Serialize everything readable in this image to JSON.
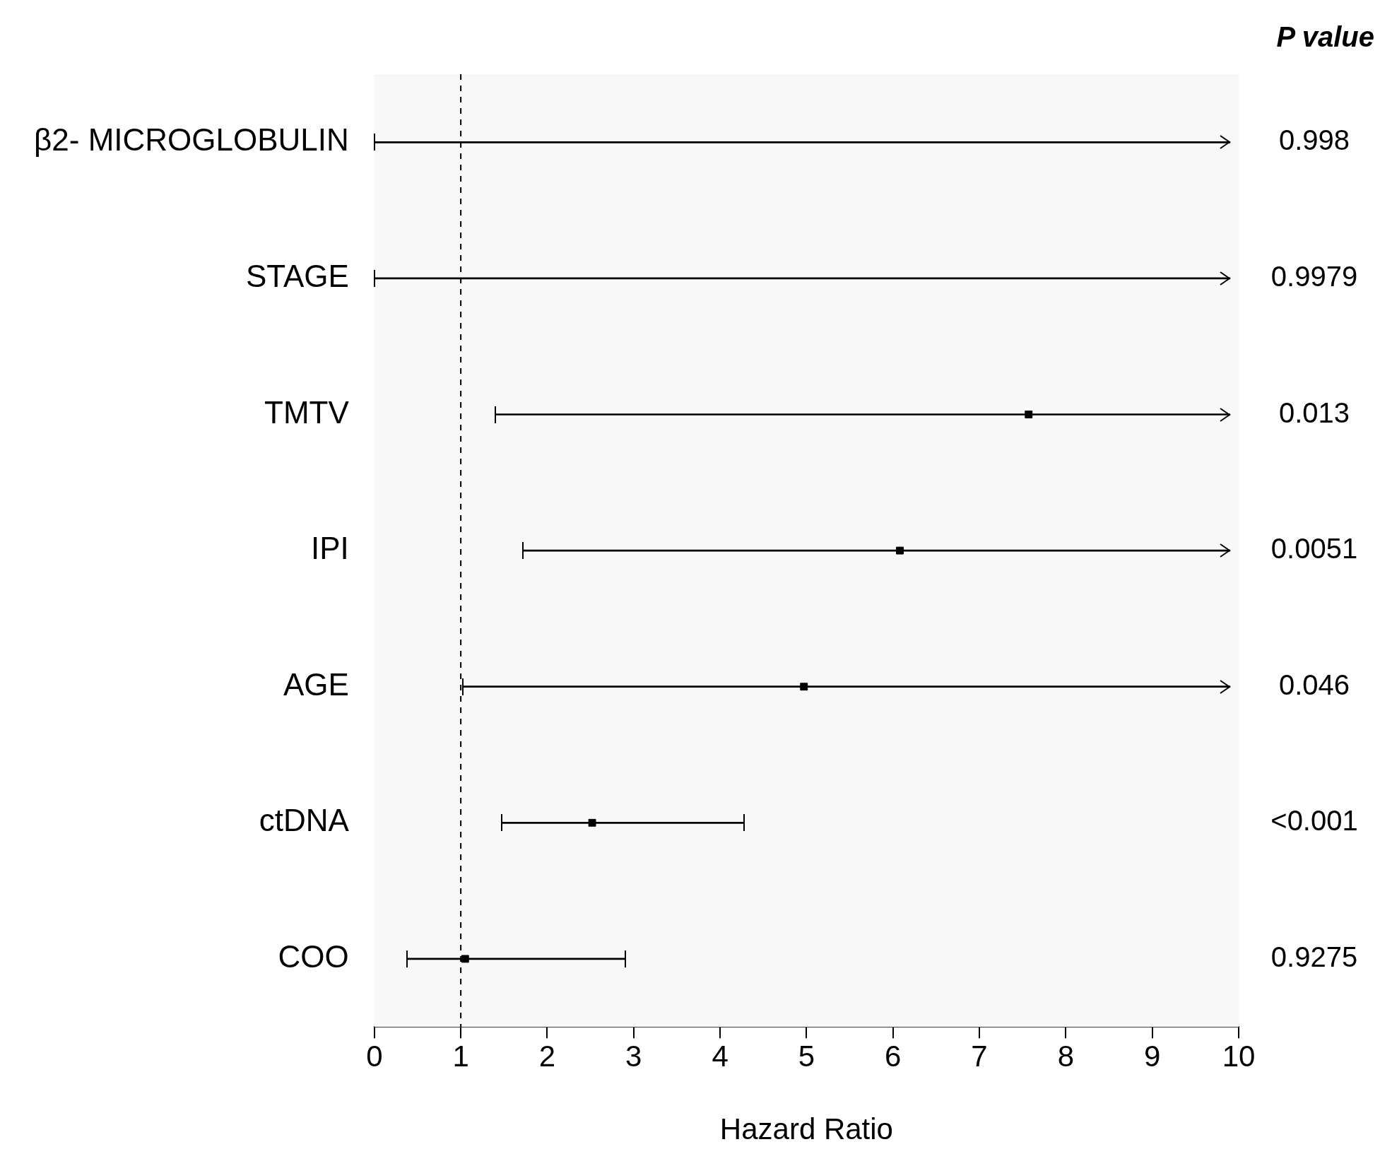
{
  "chart_data": {
    "type": "bar",
    "orientation": "horizontal",
    "xlabel": "Hazard Ratio",
    "categories": [
      "β2- MICROGLOBULIN",
      "STAGE",
      "TMTV",
      "IPI",
      "AGE",
      "ctDNA",
      "COO"
    ],
    "series": [
      {
        "type": "bar",
        "color": "#000000",
        "base": [
          0,
          0,
          1.4,
          1.72,
          1.02,
          1.47,
          0.38
        ],
        "values": [
          9.9,
          9.9,
          8.5,
          8.18,
          8.88,
          2.81,
          2.52
        ]
      },
      {
        "type": "scatter",
        "color": "#000000",
        "values": [
          null,
          null,
          7.57,
          6.08,
          4.97,
          2.52,
          1.05
        ]
      }
    ],
    "marker": "square",
    "xlim": [
      0,
      10
    ],
    "xticks": [
      0,
      1,
      2,
      3,
      4,
      5,
      6,
      7,
      8,
      9,
      10
    ],
    "ref_lines": [
      {
        "axis": "x",
        "value": 1,
        "color": "#000000",
        "line_style": "dashed"
      }
    ],
    "grid": false,
    "legend": false,
    "annotations": [
      "P value",
      "0.998",
      "0.9979",
      "0.013",
      "0.0051",
      "0.046",
      "<0.001",
      "0.9275"
    ]
  }
}
